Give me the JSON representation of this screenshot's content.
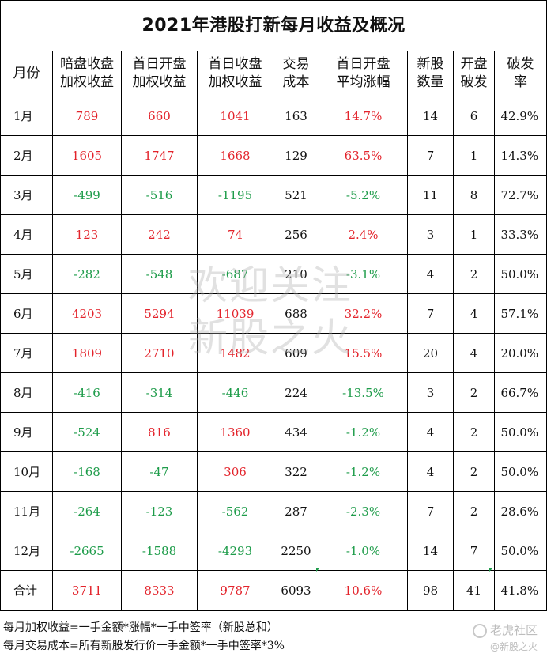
{
  "title": "2021年港股打新每月收益及概况",
  "headers": [
    [
      "月份"
    ],
    [
      "暗盘收盘",
      "加权收益"
    ],
    [
      "首日开盘",
      "加权收益"
    ],
    [
      "首日收盘",
      "加权收益"
    ],
    [
      "交易",
      "成本"
    ],
    [
      "首日开盘",
      "平均涨幅"
    ],
    [
      "新股",
      "数量"
    ],
    [
      "开盘",
      "破发"
    ],
    [
      "破发",
      "率"
    ]
  ],
  "rows": [
    {
      "month": "1月",
      "dark": "789",
      "open": "660",
      "close": "1041",
      "cost": "163",
      "avg": "14.7%",
      "count": "14",
      "broken": "6",
      "rate": "42.9%"
    },
    {
      "month": "2月",
      "dark": "1605",
      "open": "1747",
      "close": "1668",
      "cost": "129",
      "avg": "63.5%",
      "count": "7",
      "broken": "1",
      "rate": "14.3%"
    },
    {
      "month": "3月",
      "dark": "-499",
      "open": "-516",
      "close": "-1195",
      "cost": "521",
      "avg": "-5.2%",
      "count": "11",
      "broken": "8",
      "rate": "72.7%"
    },
    {
      "month": "4月",
      "dark": "123",
      "open": "242",
      "close": "74",
      "cost": "256",
      "avg": "2.4%",
      "count": "3",
      "broken": "1",
      "rate": "33.3%"
    },
    {
      "month": "5月",
      "dark": "-282",
      "open": "-548",
      "close": "-687",
      "cost": "210",
      "avg": "-3.1%",
      "count": "4",
      "broken": "2",
      "rate": "50.0%"
    },
    {
      "month": "6月",
      "dark": "4203",
      "open": "5294",
      "close": "11039",
      "cost": "688",
      "avg": "32.2%",
      "count": "7",
      "broken": "4",
      "rate": "57.1%"
    },
    {
      "month": "7月",
      "dark": "1809",
      "open": "2710",
      "close": "1482",
      "cost": "609",
      "avg": "15.5%",
      "count": "20",
      "broken": "4",
      "rate": "20.0%"
    },
    {
      "month": "8月",
      "dark": "-416",
      "open": "-314",
      "close": "-446",
      "cost": "224",
      "avg": "-13.5%",
      "count": "3",
      "broken": "2",
      "rate": "66.7%"
    },
    {
      "month": "9月",
      "dark": "-524",
      "open": "816",
      "close": "1360",
      "cost": "434",
      "avg": "-1.2%",
      "count": "4",
      "broken": "2",
      "rate": "50.0%"
    },
    {
      "month": "10月",
      "dark": "-168",
      "open": "-47",
      "close": "306",
      "cost": "322",
      "avg": "-1.2%",
      "count": "4",
      "broken": "2",
      "rate": "50.0%"
    },
    {
      "month": "11月",
      "dark": "-264",
      "open": "-123",
      "close": "-562",
      "cost": "287",
      "avg": "-2.3%",
      "count": "7",
      "broken": "2",
      "rate": "28.6%"
    },
    {
      "month": "12月",
      "dark": "-2665",
      "open": "-1588",
      "close": "-4293",
      "cost": "2250",
      "avg": "-1.0%",
      "count": "14",
      "broken": "7",
      "rate": "50.0%"
    }
  ],
  "total": {
    "month": "合计",
    "dark": "3711",
    "open": "8333",
    "close": "9787",
    "cost": "6093",
    "avg": "10.6%",
    "count": "98",
    "broken": "41",
    "rate": "41.8%"
  },
  "notes": [
    "每月加权收益=一手金额*涨幅*一手中签率（新股总和）",
    "每月交易成本=所有新股发行价一手金额*一手中签率*3%"
  ],
  "watermark": [
    "欢迎关注",
    "新股之火"
  ],
  "brand": {
    "name": "老虎社区",
    "sub": "@新股之火"
  },
  "colors": {
    "positive": "#e3232b",
    "negative": "#1e9c4a",
    "border": "#000000"
  }
}
